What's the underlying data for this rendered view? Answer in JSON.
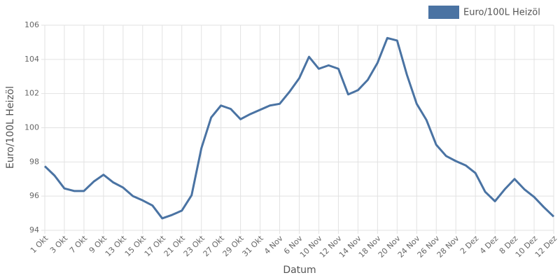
{
  "chart_data": {
    "type": "line",
    "x_label": "Datum",
    "y_label": "Euro/100L Heizöl",
    "categories": [
      "1 Okt",
      null,
      "3 Okt",
      null,
      "7 Okt",
      null,
      "9 Okt",
      null,
      "13 Okt",
      null,
      "15 Okt",
      null,
      "17 Okt",
      null,
      "21 Okt",
      null,
      "23 Okt",
      null,
      "27 Okt",
      null,
      "29 Okt",
      null,
      "31 Okt",
      null,
      "4 Nov",
      null,
      "6 Nov",
      null,
      "10 Nov",
      null,
      "12 Nov",
      null,
      "14 Nov",
      null,
      "18 Nov",
      null,
      "20 Nov",
      null,
      "24 Nov",
      null,
      "26 Nov",
      null,
      "28 Nov",
      null,
      "2 Dez",
      null,
      "4 Dez",
      null,
      "8 Dez",
      null,
      "10 Dez",
      null,
      "12 Dez"
    ],
    "series": [
      {
        "name": "Euro/100L Heizöl",
        "color": "#4a73a3",
        "values": [
          97.75,
          97.2,
          96.45,
          96.3,
          96.3,
          96.85,
          97.25,
          96.8,
          96.5,
          96.0,
          95.75,
          95.45,
          94.7,
          94.9,
          95.15,
          96.05,
          98.8,
          100.6,
          101.3,
          101.1,
          100.5,
          100.8,
          101.05,
          101.3,
          101.4,
          102.1,
          102.9,
          104.15,
          103.45,
          103.65,
          103.45,
          101.95,
          102.2,
          102.8,
          103.8,
          105.25,
          105.1,
          103.1,
          101.4,
          100.45,
          99.0,
          98.35,
          98.05,
          97.8,
          97.35,
          96.25,
          95.7,
          96.4,
          97.0,
          96.4,
          95.95,
          95.35,
          94.8
        ]
      }
    ],
    "ylim": [
      94,
      106
    ],
    "yticks": [
      94,
      96,
      98,
      100,
      102,
      104,
      106
    ],
    "grid": true,
    "legend": "top-right"
  }
}
